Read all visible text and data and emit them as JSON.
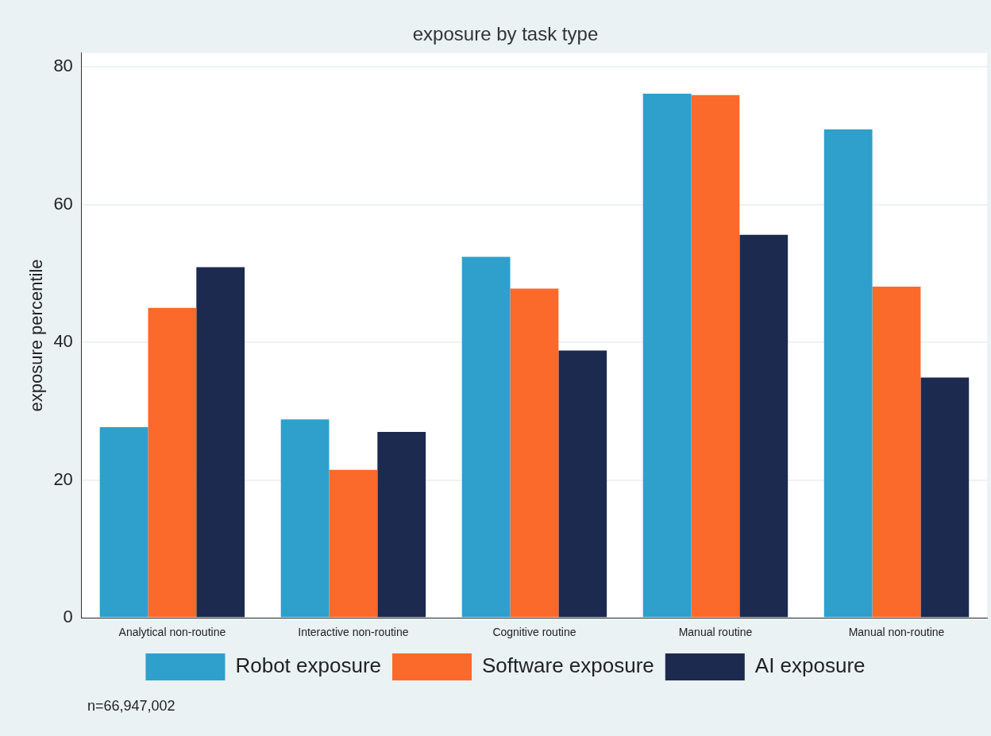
{
  "chart_data": {
    "type": "bar",
    "title": "exposure by task type",
    "ylabel": "exposure percentile",
    "categories": [
      "Analytical non-routine",
      "Interactive non-routine",
      "Cognitive routine",
      "Manual routine",
      "Manual non-routine"
    ],
    "series": [
      {
        "name": "Robot exposure",
        "color": "#2f9fcb",
        "values": [
          27.7,
          28.8,
          52.4,
          76.1,
          70.9
        ]
      },
      {
        "name": "Software exposure",
        "color": "#fc6a2b",
        "values": [
          45.0,
          21.5,
          47.8,
          75.9,
          48.1
        ]
      },
      {
        "name": "AI exposure",
        "color": "#1c2a50",
        "values": [
          50.9,
          27.0,
          38.8,
          55.6,
          34.9
        ]
      }
    ],
    "ylim": [
      0,
      82
    ],
    "yticks": [
      0,
      20,
      40,
      60,
      80
    ],
    "grid": "y",
    "legend": "bottom",
    "annotations": [
      "n=66,947,002"
    ]
  }
}
